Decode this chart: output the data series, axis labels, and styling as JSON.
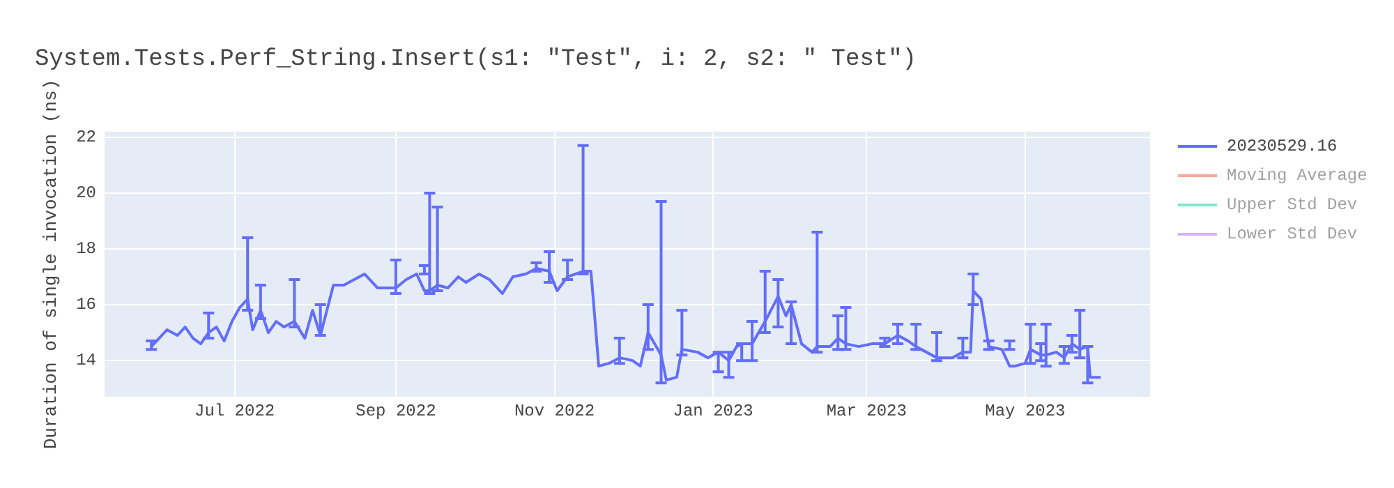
{
  "chart_data": {
    "type": "line",
    "title": "System.Tests.Perf_String.Insert(s1: \"Test\", i: 2, s2: \" Test\")",
    "ylabel": "Duration of single invocation (ns)",
    "xlim": [
      "2022-05-12",
      "2023-06-18"
    ],
    "xticks": [
      {
        "value": "2022-07-01",
        "label": "Jul 2022"
      },
      {
        "value": "2022-09-01",
        "label": "Sep 2022"
      },
      {
        "value": "2022-11-01",
        "label": "Nov 2022"
      },
      {
        "value": "2023-01-01",
        "label": "Jan 2023"
      },
      {
        "value": "2023-03-01",
        "label": "Mar 2023"
      },
      {
        "value": "2023-05-01",
        "label": "May 2023"
      }
    ],
    "ylim": [
      12.7,
      22.2
    ],
    "yticks": [
      14,
      16,
      18,
      20,
      22
    ],
    "grid": true,
    "legend": "right",
    "marker": "none",
    "line_style": "solid",
    "series": [
      {
        "name": "20230529.16",
        "color": "#636efa",
        "x": [
          "2022-05-30",
          "2022-06-02",
          "2022-06-05",
          "2022-06-09",
          "2022-06-12",
          "2022-06-15",
          "2022-06-18",
          "2022-06-21",
          "2022-06-24",
          "2022-06-27",
          "2022-06-30",
          "2022-07-03",
          "2022-07-06",
          "2022-07-08",
          "2022-07-11",
          "2022-07-14",
          "2022-07-17",
          "2022-07-20",
          "2022-07-24",
          "2022-07-28",
          "2022-07-31",
          "2022-08-03",
          "2022-08-08",
          "2022-08-12",
          "2022-08-16",
          "2022-08-20",
          "2022-08-25",
          "2022-09-01",
          "2022-09-05",
          "2022-09-09",
          "2022-09-12",
          "2022-09-14",
          "2022-09-17",
          "2022-09-21",
          "2022-09-25",
          "2022-09-28",
          "2022-10-03",
          "2022-10-07",
          "2022-10-12",
          "2022-10-16",
          "2022-10-21",
          "2022-10-25",
          "2022-10-30",
          "2022-11-02",
          "2022-11-06",
          "2022-11-12",
          "2022-11-15",
          "2022-11-16",
          "2022-11-18",
          "2022-11-22",
          "2022-11-26",
          "2022-12-01",
          "2022-12-04",
          "2022-12-07",
          "2022-12-12",
          "2022-12-14",
          "2022-12-18",
          "2022-12-20",
          "2022-12-26",
          "2022-12-30",
          "2023-01-03",
          "2023-01-07",
          "2023-01-10",
          "2023-01-12",
          "2023-01-16",
          "2023-01-21",
          "2023-01-26",
          "2023-01-29",
          "2023-01-31",
          "2023-02-04",
          "2023-02-08",
          "2023-02-10",
          "2023-02-15",
          "2023-02-18",
          "2023-02-21",
          "2023-02-26",
          "2023-03-03",
          "2023-03-08",
          "2023-03-13",
          "2023-03-17",
          "2023-03-20",
          "2023-03-24",
          "2023-03-28",
          "2023-04-03",
          "2023-04-07",
          "2023-04-10",
          "2023-04-11",
          "2023-04-14",
          "2023-04-17",
          "2023-04-22",
          "2023-04-25",
          "2023-04-27",
          "2023-05-01",
          "2023-05-03",
          "2023-05-07",
          "2023-05-09",
          "2023-05-13",
          "2023-05-16",
          "2023-05-19",
          "2023-05-22",
          "2023-05-25",
          "2023-05-26",
          "2023-05-30"
        ],
        "values": [
          14.5,
          14.8,
          15.1,
          14.9,
          15.2,
          14.8,
          14.6,
          15.0,
          15.2,
          14.7,
          15.4,
          15.9,
          16.2,
          15.1,
          15.8,
          15.0,
          15.4,
          15.2,
          15.4,
          14.8,
          15.8,
          14.9,
          16.7,
          16.7,
          16.9,
          17.1,
          16.6,
          16.6,
          16.9,
          17.1,
          16.5,
          16.5,
          16.7,
          16.6,
          17.0,
          16.8,
          17.1,
          16.9,
          16.4,
          17.0,
          17.1,
          17.3,
          17.2,
          16.5,
          17.0,
          17.2,
          17.2,
          16.1,
          13.8,
          13.9,
          14.1,
          14.0,
          13.8,
          15.0,
          14.2,
          13.3,
          13.4,
          14.4,
          14.3,
          14.1,
          14.3,
          14.0,
          14.5,
          14.6,
          14.6,
          15.4,
          16.3,
          15.6,
          16.0,
          14.6,
          14.3,
          14.5,
          14.5,
          14.8,
          14.6,
          14.5,
          14.6,
          14.6,
          14.9,
          14.7,
          14.5,
          14.3,
          14.1,
          14.1,
          14.3,
          14.3,
          16.5,
          16.2,
          14.5,
          14.4,
          13.8,
          13.8,
          13.9,
          14.4,
          14.2,
          14.2,
          14.3,
          14.1,
          14.6,
          14.4,
          14.5,
          13.4,
          13.4
        ],
        "errors": [
          [
            14.4,
            14.7
          ],
          null,
          null,
          null,
          null,
          null,
          null,
          [
            14.8,
            15.7
          ],
          null,
          null,
          null,
          null,
          [
            15.8,
            18.4
          ],
          null,
          [
            15.5,
            16.7
          ],
          null,
          null,
          null,
          [
            15.2,
            16.9
          ],
          null,
          null,
          [
            14.9,
            16.0
          ],
          null,
          null,
          null,
          null,
          null,
          [
            16.4,
            17.6
          ],
          null,
          null,
          [
            17.1,
            17.4
          ],
          [
            16.4,
            20.0
          ],
          [
            16.5,
            19.5
          ],
          null,
          null,
          null,
          null,
          null,
          null,
          null,
          null,
          [
            17.2,
            17.5
          ],
          [
            16.8,
            17.9
          ],
          null,
          [
            16.9,
            17.6
          ],
          [
            17.1,
            21.7
          ],
          null,
          null,
          null,
          null,
          [
            13.9,
            14.8
          ],
          null,
          null,
          [
            14.4,
            16.0
          ],
          [
            13.2,
            19.7
          ],
          null,
          null,
          [
            14.2,
            15.8
          ],
          null,
          null,
          [
            13.6,
            14.3
          ],
          [
            13.4,
            14.3
          ],
          null,
          [
            14.0,
            14.6
          ],
          [
            14.0,
            15.4
          ],
          [
            15.0,
            17.2
          ],
          [
            15.2,
            16.9
          ],
          null,
          [
            14.6,
            16.1
          ],
          null,
          null,
          [
            14.3,
            18.6
          ],
          null,
          [
            14.4,
            15.6
          ],
          [
            14.4,
            15.9
          ],
          null,
          null,
          [
            14.5,
            14.8
          ],
          [
            14.6,
            15.3
          ],
          null,
          [
            14.4,
            15.3
          ],
          null,
          [
            14.0,
            15.0
          ],
          null,
          [
            14.1,
            14.8
          ],
          null,
          [
            16.0,
            17.1
          ],
          null,
          [
            14.4,
            14.7
          ],
          null,
          [
            14.4,
            14.7
          ],
          null,
          null,
          [
            13.9,
            15.3
          ],
          [
            14.0,
            14.6
          ],
          [
            13.8,
            15.3
          ],
          null,
          [
            13.9,
            14.5
          ],
          [
            14.3,
            14.9
          ],
          [
            14.1,
            15.8
          ],
          [
            13.2,
            14.5
          ],
          null,
          null
        ]
      },
      {
        "name": "Moving Average",
        "color": "#ef553b"
      },
      {
        "name": "Upper Std Dev",
        "color": "#00cc96"
      },
      {
        "name": "Lower Std Dev",
        "color": "#ab63fa"
      }
    ]
  }
}
